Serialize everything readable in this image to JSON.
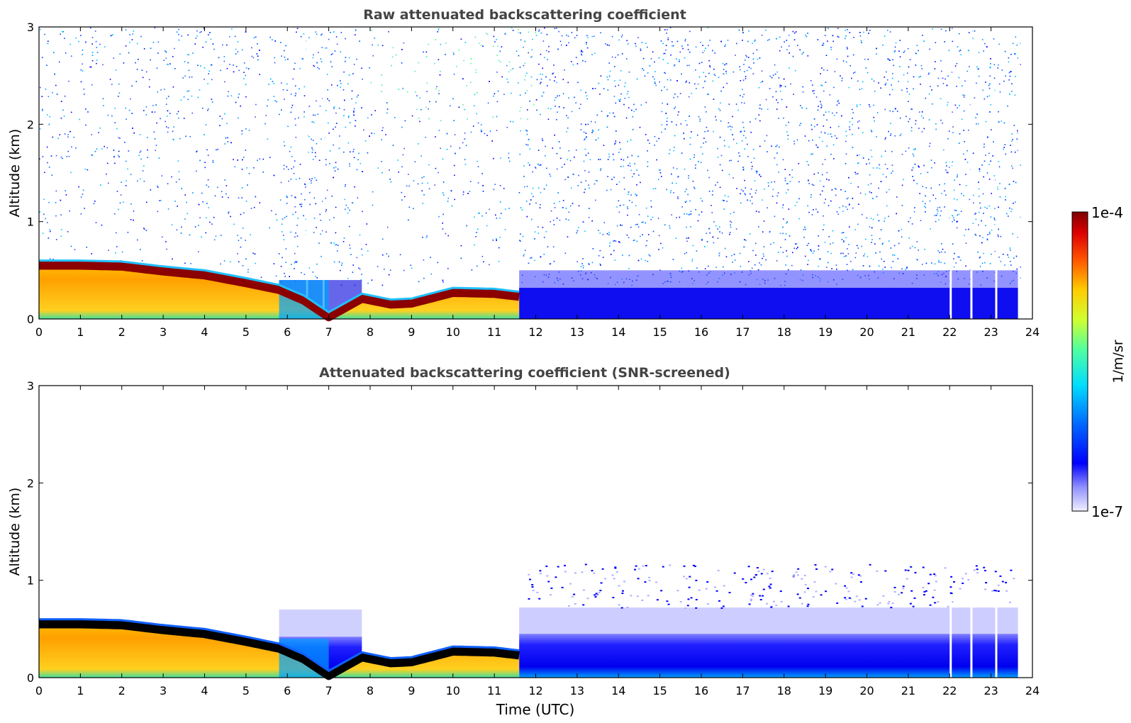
{
  "chart_data": [
    {
      "type": "heatmap",
      "title": "Raw attenuated backscattering coefficient",
      "xlabel": "",
      "ylabel": "Altitude (km)",
      "xlim": [
        0,
        24
      ],
      "ylim": [
        0,
        3
      ],
      "xticks": [
        "0",
        "1",
        "2",
        "3",
        "4",
        "5",
        "6",
        "7",
        "8",
        "9",
        "10",
        "11",
        "12",
        "13",
        "14",
        "15",
        "16",
        "17",
        "18",
        "19",
        "20",
        "21",
        "22",
        "23",
        "24"
      ],
      "yticks": [
        "0",
        "1",
        "2",
        "3"
      ],
      "layer_top_km": [
        [
          0,
          0.58
        ],
        [
          1,
          0.58
        ],
        [
          2,
          0.57
        ],
        [
          3,
          0.52
        ],
        [
          4,
          0.48
        ],
        [
          5,
          0.4
        ],
        [
          5.8,
          0.33
        ],
        [
          6.4,
          0.22
        ],
        [
          7.0,
          0.05
        ],
        [
          7.8,
          0.24
        ],
        [
          8.5,
          0.18
        ],
        [
          9.0,
          0.19
        ],
        [
          10.0,
          0.3
        ],
        [
          11.0,
          0.29
        ],
        [
          11.6,
          0.26
        ]
      ],
      "colors": {
        "surface_layer": "yellow-orange",
        "layer_top": "dark-red"
      },
      "scale": "log"
    },
    {
      "type": "heatmap",
      "title": "Attenuated backscattering coefficient (SNR-screened)",
      "xlabel": "Time (UTC)",
      "ylabel": "Altitude (km)",
      "xlim": [
        0,
        24
      ],
      "ylim": [
        0,
        3
      ],
      "xticks": [
        "0",
        "1",
        "2",
        "3",
        "4",
        "5",
        "6",
        "7",
        "8",
        "9",
        "10",
        "11",
        "12",
        "13",
        "14",
        "15",
        "16",
        "17",
        "18",
        "19",
        "20",
        "21",
        "22",
        "23",
        "24"
      ],
      "yticks": [
        "0",
        "1",
        "2",
        "3"
      ],
      "layer_top_km": [
        [
          0,
          0.58
        ],
        [
          1,
          0.58
        ],
        [
          2,
          0.57
        ],
        [
          3,
          0.52
        ],
        [
          4,
          0.48
        ],
        [
          5,
          0.4
        ],
        [
          5.8,
          0.33
        ],
        [
          6.4,
          0.22
        ],
        [
          7.0,
          0.05
        ],
        [
          7.8,
          0.24
        ],
        [
          8.5,
          0.18
        ],
        [
          9.0,
          0.19
        ],
        [
          10.0,
          0.3
        ],
        [
          11.0,
          0.29
        ],
        [
          11.6,
          0.26
        ]
      ],
      "colors": {
        "surface_layer": "yellow-orange",
        "layer_top": "black"
      },
      "scale": "log"
    }
  ],
  "colorbar": {
    "label": "1/m/sr",
    "max_label": "1e-4",
    "min_label": "1e-7",
    "scale": "log",
    "colormap": "jet"
  }
}
